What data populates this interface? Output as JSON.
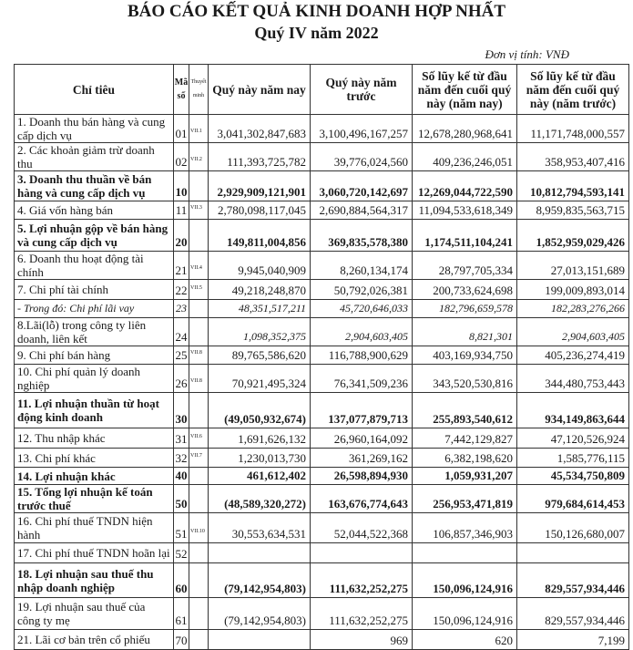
{
  "header": {
    "title": "BÁO CÁO KẾT QUẢ KINH DOANH HỢP NHẤT",
    "subtitle": "Quý IV năm 2022",
    "unit": "Đơn vị tính: VNĐ"
  },
  "table": {
    "columns": [
      "Chỉ tiêu",
      "Mã số",
      "Thuyết minh",
      "Quý này năm nay",
      "Quý này năm trước",
      "Số lũy kế từ đầu năm đến cuối quý này (năm nay)",
      "Số lũy kế từ đầu năm đến cuối quý này (năm trước)"
    ],
    "rows": [
      {
        "label": "1. Doanh thu bán hàng và cung cấp dịch vụ",
        "code": "01",
        "note": "VII.1",
        "q_cur": "3,041,302,847,683",
        "q_prev": "3,100,496,167,257",
        "ytd_cur": "12,678,280,968,641",
        "ytd_prev": "11,171,748,000,557",
        "style": "normal"
      },
      {
        "label": "2. Các khoản giảm trừ doanh thu",
        "code": "02",
        "note": "VII.2",
        "q_cur": "111,393,725,782",
        "q_prev": "39,776,024,560",
        "ytd_cur": "409,236,246,051",
        "ytd_prev": "358,953,407,416",
        "style": "normal"
      },
      {
        "label": "3. Doanh thu thuần về bán hàng và cung cấp dịch vụ",
        "code": "10",
        "note": "",
        "q_cur": "2,929,909,121,901",
        "q_prev": "3,060,720,142,697",
        "ytd_cur": "12,269,044,722,590",
        "ytd_prev": "10,812,794,593,141",
        "style": "bold"
      },
      {
        "label": "4. Giá vốn hàng bán",
        "code": "11",
        "note": "VII.3",
        "q_cur": "2,780,098,117,045",
        "q_prev": "2,690,884,564,317",
        "ytd_cur": "11,094,533,618,349",
        "ytd_prev": "8,959,835,563,715",
        "style": "normal"
      },
      {
        "label": "5. Lợi nhuận gộp về bán hàng và cung cấp dịch vụ",
        "code": "20",
        "note": "",
        "q_cur": "149,811,004,856",
        "q_prev": "369,835,578,380",
        "ytd_cur": "1,174,511,104,241",
        "ytd_prev": "1,852,959,029,426",
        "style": "bold"
      },
      {
        "label": "6. Doanh thu hoạt động tài chính",
        "code": "21",
        "note": "VII.4",
        "q_cur": "9,945,040,909",
        "q_prev": "8,260,134,174",
        "ytd_cur": "28,797,705,334",
        "ytd_prev": "27,013,151,689",
        "style": "normal"
      },
      {
        "label": "7. Chi phí tài chính",
        "code": "22",
        "note": "VII.5",
        "q_cur": "49,218,248,870",
        "q_prev": "50,792,026,381",
        "ytd_cur": "200,733,624,698",
        "ytd_prev": "199,009,893,014",
        "style": "normal"
      },
      {
        "label": "- Trong đó: Chi phí lãi vay",
        "code": "23",
        "note": "",
        "q_cur": "48,351,517,211",
        "q_prev": "45,720,646,033",
        "ytd_cur": "182,796,659,578",
        "ytd_prev": "182,283,276,266",
        "style": "italic"
      },
      {
        "label": "8.Lãi(lỗ) trong công ty liên doanh, liên kết",
        "code": "24",
        "note": "",
        "q_cur": "1,098,352,375",
        "q_prev": "2,904,603,405",
        "ytd_cur": "8,821,301",
        "ytd_prev": "2,904,603,405",
        "style": "italic-num"
      },
      {
        "label": "9. Chi phí bán hàng",
        "code": "25",
        "note": "VII.8",
        "q_cur": "89,765,586,620",
        "q_prev": "116,788,900,629",
        "ytd_cur": "403,169,934,750",
        "ytd_prev": "405,236,274,419",
        "style": "normal"
      },
      {
        "label": "10. Chi phí quản lý doanh nghiệp",
        "code": "26",
        "note": "VII.8",
        "q_cur": "70,921,495,324",
        "q_prev": "76,341,509,236",
        "ytd_cur": "343,520,530,816",
        "ytd_prev": "344,480,753,443",
        "style": "normal"
      },
      {
        "label": "11. Lợi nhuận thuần từ hoạt động kinh doanh",
        "code": "30",
        "note": "",
        "q_cur": "(49,050,932,674)",
        "q_prev": "137,077,879,713",
        "ytd_cur": "255,893,540,612",
        "ytd_prev": "934,149,863,644",
        "style": "bold"
      },
      {
        "label": "12. Thu nhập khác",
        "code": "31",
        "note": "VII.6",
        "q_cur": "1,691,626,132",
        "q_prev": "26,960,164,092",
        "ytd_cur": "7,442,129,827",
        "ytd_prev": "47,120,526,924",
        "style": "normal"
      },
      {
        "label": "13. Chi phí khác",
        "code": "32",
        "note": "VII.7",
        "q_cur": "1,230,013,730",
        "q_prev": "361,269,162",
        "ytd_cur": "6,382,198,620",
        "ytd_prev": "1,585,776,115",
        "style": "normal"
      },
      {
        "label": "14. Lợi nhuận khác",
        "code": "40",
        "note": "",
        "q_cur": "461,612,402",
        "q_prev": "26,598,894,930",
        "ytd_cur": "1,059,931,207",
        "ytd_prev": "45,534,750,809",
        "style": "bold"
      },
      {
        "label": "15. Tổng lợi nhuận kế toán trước thuế",
        "code": "50",
        "note": "",
        "q_cur": "(48,589,320,272)",
        "q_prev": "163,676,774,643",
        "ytd_cur": "256,953,471,819",
        "ytd_prev": "979,684,614,453",
        "style": "bold"
      },
      {
        "label": "16. Chi phí thuế TNDN hiện hành",
        "code": "51",
        "note": "VII.10",
        "q_cur": "30,553,634,531",
        "q_prev": "52,044,522,368",
        "ytd_cur": "106,857,346,903",
        "ytd_prev": "150,126,680,007",
        "style": "normal"
      },
      {
        "label": "17. Chi phí thuế TNDN hoãn lại",
        "code": "52",
        "note": "",
        "q_cur": "",
        "q_prev": "",
        "ytd_cur": "",
        "ytd_prev": "",
        "style": "normal"
      },
      {
        "label": "18. Lợi nhuận sau thuế thu nhập doanh nghiệp",
        "code": "60",
        "note": "",
        "q_cur": "(79,142,954,803)",
        "q_prev": "111,632,252,275",
        "ytd_cur": "150,096,124,916",
        "ytd_prev": "829,557,934,446",
        "style": "bold"
      },
      {
        "label": "19. Lợi nhuận sau thuế của công ty mẹ",
        "code": "61",
        "note": "",
        "q_cur": "(79,142,954,803)",
        "q_prev": "111,632,252,275",
        "ytd_cur": "150,096,124,916",
        "ytd_prev": "829,557,934,446",
        "style": "normal"
      },
      {
        "label": "21. Lãi cơ bản trên cổ phiếu",
        "code": "70",
        "note": "",
        "q_cur": "",
        "q_prev": "969",
        "ytd_cur": "620",
        "ytd_prev": "7,199",
        "style": "normal"
      }
    ]
  }
}
